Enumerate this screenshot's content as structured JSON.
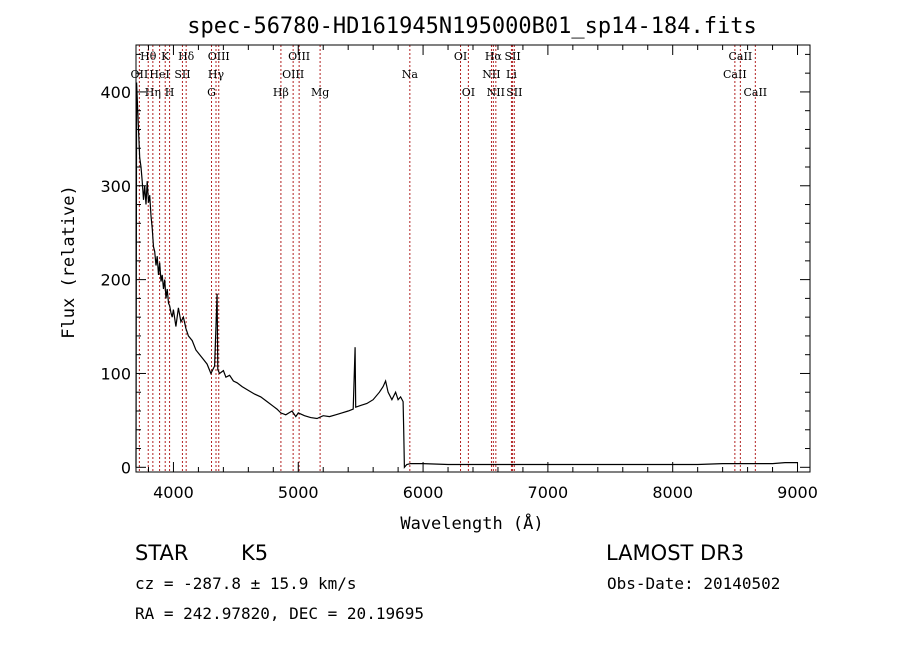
{
  "chart_data": {
    "type": "line",
    "title": "spec-56780-HD161945N195000B01_sp14-184.fits",
    "xlabel": "Wavelength (Å)",
    "ylabel": "Flux (relative)",
    "xlim": [
      3700,
      9100
    ],
    "ylim": [
      -5,
      450
    ],
    "x_ticks": [
      4000,
      5000,
      6000,
      7000,
      8000,
      9000
    ],
    "x_tick_labels": [
      "4000",
      "5000",
      "6000",
      "7000",
      "8000",
      "9000"
    ],
    "y_ticks": [
      0,
      100,
      200,
      300,
      400
    ],
    "y_tick_labels": [
      "0",
      "100",
      "200",
      "300",
      "400"
    ],
    "series": [
      {
        "name": "flux",
        "points": [
          [
            3700,
            0
          ],
          [
            3705,
            410
          ],
          [
            3720,
            360
          ],
          [
            3730,
            330
          ],
          [
            3740,
            320
          ],
          [
            3750,
            305
          ],
          [
            3760,
            285
          ],
          [
            3770,
            300
          ],
          [
            3780,
            280
          ],
          [
            3790,
            305
          ],
          [
            3800,
            282
          ],
          [
            3810,
            290
          ],
          [
            3820,
            268
          ],
          [
            3830,
            255
          ],
          [
            3840,
            235
          ],
          [
            3850,
            230
          ],
          [
            3860,
            215
          ],
          [
            3870,
            225
          ],
          [
            3880,
            205
          ],
          [
            3890,
            218
          ],
          [
            3900,
            198
          ],
          [
            3910,
            205
          ],
          [
            3920,
            190
          ],
          [
            3930,
            200
          ],
          [
            3940,
            180
          ],
          [
            3950,
            190
          ],
          [
            3960,
            175
          ],
          [
            3970,
            172
          ],
          [
            3980,
            165
          ],
          [
            3990,
            160
          ],
          [
            4000,
            168
          ],
          [
            4020,
            150
          ],
          [
            4040,
            170
          ],
          [
            4060,
            155
          ],
          [
            4080,
            160
          ],
          [
            4100,
            148
          ],
          [
            4120,
            140
          ],
          [
            4150,
            135
          ],
          [
            4180,
            125
          ],
          [
            4210,
            120
          ],
          [
            4240,
            115
          ],
          [
            4270,
            110
          ],
          [
            4300,
            100
          ],
          [
            4330,
            108
          ],
          [
            4350,
            185
          ],
          [
            4355,
            104
          ],
          [
            4370,
            100
          ],
          [
            4400,
            103
          ],
          [
            4420,
            96
          ],
          [
            4450,
            98
          ],
          [
            4480,
            92
          ],
          [
            4510,
            90
          ],
          [
            4550,
            86
          ],
          [
            4600,
            82
          ],
          [
            4650,
            78
          ],
          [
            4700,
            75
          ],
          [
            4750,
            70
          ],
          [
            4800,
            65
          ],
          [
            4830,
            62
          ],
          [
            4860,
            58
          ],
          [
            4900,
            56
          ],
          [
            4950,
            60
          ],
          [
            4980,
            54
          ],
          [
            5000,
            58
          ],
          [
            5050,
            55
          ],
          [
            5100,
            53
          ],
          [
            5150,
            52
          ],
          [
            5200,
            55
          ],
          [
            5250,
            54
          ],
          [
            5300,
            56
          ],
          [
            5350,
            58
          ],
          [
            5400,
            60
          ],
          [
            5440,
            62
          ],
          [
            5455,
            128
          ],
          [
            5460,
            64
          ],
          [
            5500,
            66
          ],
          [
            5550,
            68
          ],
          [
            5600,
            72
          ],
          [
            5650,
            80
          ],
          [
            5680,
            86
          ],
          [
            5700,
            92
          ],
          [
            5720,
            80
          ],
          [
            5750,
            72
          ],
          [
            5780,
            80
          ],
          [
            5800,
            72
          ],
          [
            5820,
            75
          ],
          [
            5840,
            70
          ],
          [
            5845,
            40
          ],
          [
            5850,
            0
          ],
          [
            5870,
            3
          ],
          [
            5900,
            4
          ],
          [
            6000,
            4
          ],
          [
            6200,
            3
          ],
          [
            6400,
            3
          ],
          [
            6600,
            3
          ],
          [
            6800,
            3
          ],
          [
            7000,
            3
          ],
          [
            7200,
            3
          ],
          [
            7400,
            3
          ],
          [
            7600,
            3
          ],
          [
            7800,
            3
          ],
          [
            8000,
            3
          ],
          [
            8200,
            3
          ],
          [
            8400,
            4
          ],
          [
            8600,
            4
          ],
          [
            8800,
            4
          ],
          [
            8900,
            5
          ],
          [
            9000,
            5
          ]
        ]
      }
    ],
    "lines": [
      {
        "name": "OII",
        "wavelength": 3727,
        "row": 1
      },
      {
        "name": "Hθ",
        "wavelength": 3798,
        "row": 0
      },
      {
        "name": "Hη",
        "wavelength": 3835,
        "row": 2
      },
      {
        "name": "K",
        "wavelength": 3934,
        "row": 0
      },
      {
        "name": "HeI",
        "wavelength": 3889,
        "row": 1
      },
      {
        "name": "H",
        "wavelength": 3969,
        "row": 2
      },
      {
        "name": "SII",
        "wavelength": 4072,
        "row": 1
      },
      {
        "name": "Hδ",
        "wavelength": 4102,
        "row": 0
      },
      {
        "name": "OIII",
        "wavelength": 4363,
        "row": 0
      },
      {
        "name": "Hγ",
        "wavelength": 4341,
        "row": 1
      },
      {
        "name": "G",
        "wavelength": 4305,
        "row": 2
      },
      {
        "name": "Hβ",
        "wavelength": 4861,
        "row": 2
      },
      {
        "name": "OIII",
        "wavelength": 4959,
        "row": 1
      },
      {
        "name": "OIII",
        "wavelength": 5007,
        "row": 0
      },
      {
        "name": "Mg",
        "wavelength": 5175,
        "row": 2
      },
      {
        "name": "Na",
        "wavelength": 5894,
        "row": 1
      },
      {
        "name": "OI",
        "wavelength": 6300,
        "row": 0
      },
      {
        "name": "OI",
        "wavelength": 6363,
        "row": 2
      },
      {
        "name": "Hα",
        "wavelength": 6563,
        "row": 0
      },
      {
        "name": "NII",
        "wavelength": 6548,
        "row": 1
      },
      {
        "name": "NII",
        "wavelength": 6583,
        "row": 2
      },
      {
        "name": "SII",
        "wavelength": 6717,
        "row": 0
      },
      {
        "name": "Li",
        "wavelength": 6708,
        "row": 1
      },
      {
        "name": "SII",
        "wavelength": 6731,
        "row": 2
      },
      {
        "name": "CaII",
        "wavelength": 8498,
        "row": 1
      },
      {
        "name": "CaII",
        "wavelength": 8542,
        "row": 0
      },
      {
        "name": "CaII",
        "wavelength": 8662,
        "row": 2
      }
    ]
  },
  "info": {
    "object_class": "STAR",
    "subclass": "K5",
    "survey": "LAMOST DR3",
    "redshift": "cz = -287.8 ± 15.9 km/s",
    "obs_date": "Obs-Date: 20140502",
    "coords": "RA = 242.97820, DEC =  20.19695"
  },
  "colors": {
    "line_marker": "#b22222",
    "spectrum": "#000000",
    "axes": "#000000"
  }
}
